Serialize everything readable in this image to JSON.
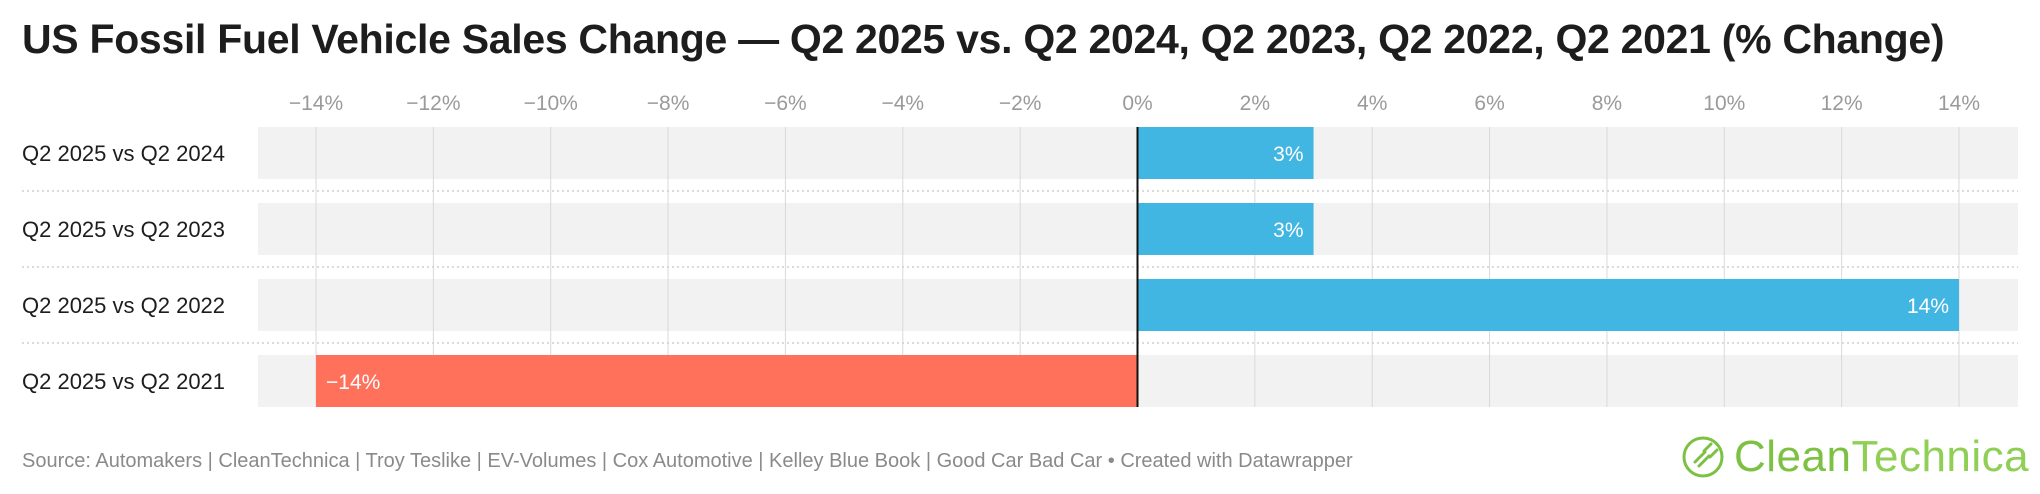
{
  "title": "US Fossil Fuel Vehicle Sales Change — Q2 2025 vs. Q2 2024, Q2 2023, Q2 2022, Q2 2021 (% Change)",
  "source": "Source: Automakers | CleanTechnica | Troy Teslike | EV-Volumes | Cox Automotive | Kelley Blue Book | Good Car Bad Car • Created with Datawrapper",
  "logo": {
    "text_a": "Clean",
    "text_b": "Technica"
  },
  "colors": {
    "positive": "#41b6e2",
    "negative": "#ff715b",
    "band": "#f2f2f2",
    "grid": "#d9d9d9",
    "tick": "#9a9a9a",
    "label": "#1d1d1d",
    "logo": "#7dc142"
  },
  "chart_data": {
    "type": "bar",
    "orientation": "horizontal",
    "categories": [
      "Q2 2025 vs Q2 2024",
      "Q2 2025 vs Q2 2023",
      "Q2 2025 vs Q2 2022",
      "Q2 2025 vs Q2 2021"
    ],
    "values": [
      3,
      3,
      14,
      -14
    ],
    "value_labels": [
      "3%",
      "3%",
      "14%",
      "−14%"
    ],
    "xlim": [
      -14,
      14
    ],
    "ticks": [
      -14,
      -12,
      -10,
      -8,
      -6,
      -4,
      -2,
      0,
      2,
      4,
      6,
      8,
      10,
      12,
      14
    ],
    "tick_labels": [
      "−14%",
      "−12%",
      "−10%",
      "−8%",
      "−6%",
      "−4%",
      "−2%",
      "0%",
      "2%",
      "4%",
      "6%",
      "8%",
      "10%",
      "12%",
      "14%"
    ],
    "tick_position": "top",
    "grid": true,
    "xlabel": "",
    "ylabel": ""
  }
}
